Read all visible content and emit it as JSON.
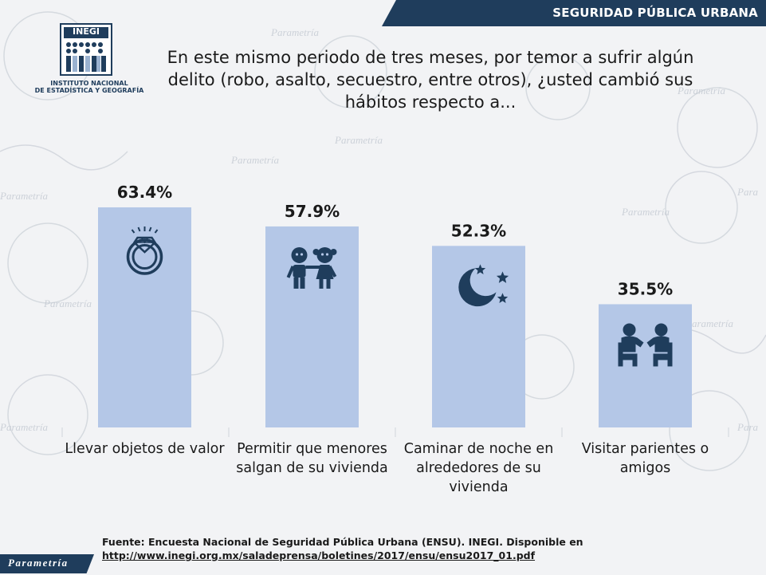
{
  "header": {
    "section_title": "SEGURIDAD PÚBLICA URBANA"
  },
  "logo": {
    "acronym": "INEGI",
    "line1": "INSTITUTO NACIONAL",
    "line2": "DE ESTADÍSTICA Y GEOGRAFÍA"
  },
  "question": "En este mismo periodo de tres meses, por temor a sufrir algún delito (robo, asalto, secuestro, entre otros), ¿usted cambió sus hábitos respecto a...",
  "chart_data": {
    "type": "bar",
    "categories": [
      "Llevar objetos de valor",
      "Permitir que menores salgan de su vivienda",
      "Caminar de noche en alrededores de su vivienda",
      "Visitar parientes o amigos"
    ],
    "category_lines": [
      [
        "Llevar objetos de valor"
      ],
      [
        "Permitir que menores",
        "salgan de su vivienda"
      ],
      [
        "Caminar de noche en",
        "alrededores de su",
        "vivienda"
      ],
      [
        "Visitar parientes o",
        "amigos"
      ]
    ],
    "values": [
      63.4,
      57.9,
      52.3,
      35.5
    ],
    "value_labels": [
      "63.4%",
      "57.9%",
      "52.3%",
      "35.5%"
    ],
    "icons": [
      "ring-icon",
      "children-icon",
      "moon-stars-icon",
      "people-talking-icon"
    ],
    "ylim": [
      0,
      100
    ],
    "bar_color": "#b4c7e7",
    "icon_color": "#1f3d5c",
    "grid": false
  },
  "source": {
    "text": "Fuente: Encuesta Nacional de Seguridad Pública Urbana (ENSU). INEGI. Disponible en",
    "link": "http://www.inegi.org.mx/saladeprensa/boletines/2017/ensu/ensu2017_01.pdf"
  },
  "watermark": "Parametría",
  "footer_brand": "Parametría"
}
